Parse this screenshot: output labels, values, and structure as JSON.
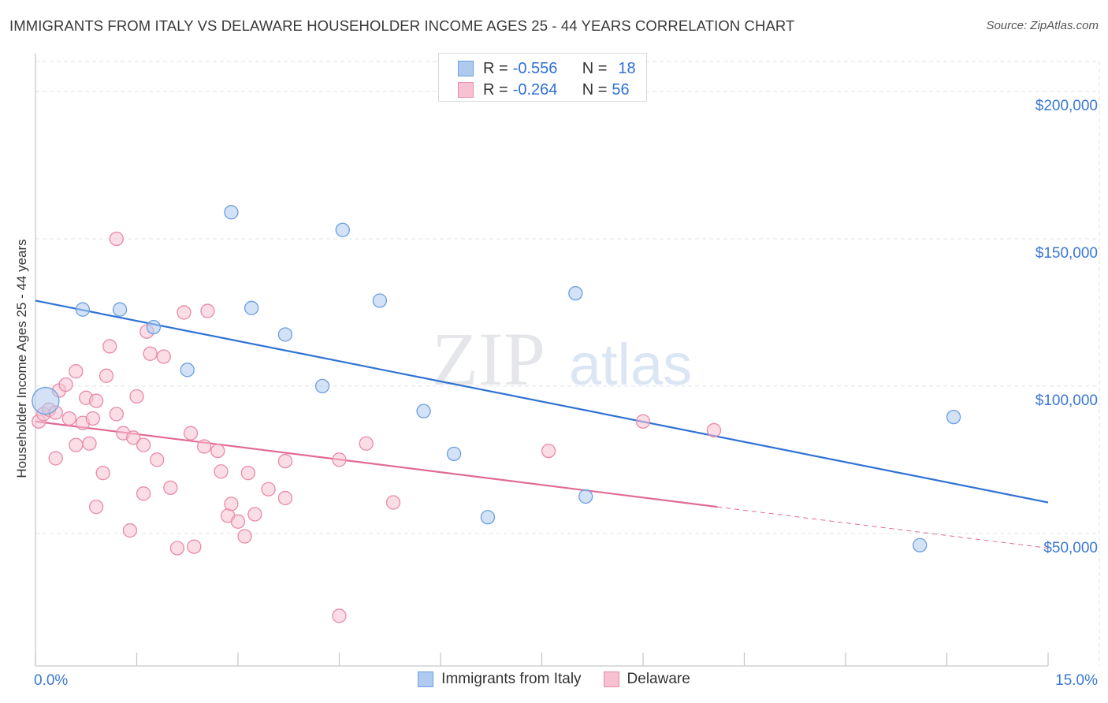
{
  "title": "IMMIGRANTS FROM ITALY VS DELAWARE HOUSEHOLDER INCOME AGES 25 - 44 YEARS CORRELATION CHART",
  "source": "Source: ZipAtlas.com",
  "watermark": {
    "zip": "ZIP",
    "atlas": "atlas"
  },
  "legend": {
    "rows": [
      {
        "r_label": "R =",
        "r_value": "-0.556",
        "n_label": "N =",
        "n_value": "18"
      },
      {
        "r_label": "R =",
        "r_value": "-0.264",
        "n_label": "N =",
        "n_value": "56"
      }
    ]
  },
  "bottom_legend": {
    "series1": "Immigrants from Italy",
    "series2": "Delaware"
  },
  "colors": {
    "blue_fill": "#aecbef",
    "blue_stroke": "#6a9fe0",
    "blue_line": "#2f72d4",
    "pink_fill": "#f7c1d1",
    "pink_stroke": "#e98aa9",
    "pink_line": "#e06a96",
    "tick_label": "#3a78d4",
    "grid": "#dde3ea"
  },
  "chart_data": {
    "type": "scatter",
    "title": "IMMIGRANTS FROM ITALY VS DELAWARE HOUSEHOLDER INCOME AGES 25 - 44 YEARS CORRELATION CHART",
    "xlabel": "",
    "ylabel": "Householder Income Ages 25 - 44 years",
    "xlim": [
      0,
      15
    ],
    "ylim": [
      5000,
      215000
    ],
    "x_tick_labels": [
      "0.0%",
      "15.0%"
    ],
    "y_ticks": [
      50000,
      100000,
      150000,
      200000
    ],
    "y_tick_labels": [
      "$50,000",
      "$100,000",
      "$150,000",
      "$200,000"
    ],
    "grid": true,
    "legend_position": "top-center",
    "series": [
      {
        "name": "Immigrants from Italy",
        "r": -0.556,
        "n": 18,
        "points": [
          [
            0.15,
            95000
          ],
          [
            0.7,
            126000
          ],
          [
            1.25,
            126000
          ],
          [
            1.75,
            120000
          ],
          [
            2.25,
            105500
          ],
          [
            2.9,
            159000
          ],
          [
            3.2,
            126500
          ],
          [
            3.7,
            117500
          ],
          [
            4.25,
            100000
          ],
          [
            4.55,
            153000
          ],
          [
            5.1,
            129000
          ],
          [
            5.75,
            91500
          ],
          [
            6.2,
            77000
          ],
          [
            6.7,
            55500
          ],
          [
            8.0,
            131500
          ],
          [
            8.15,
            62500
          ],
          [
            13.1,
            46000
          ],
          [
            13.6,
            89500
          ]
        ],
        "trend": [
          [
            0,
            129000
          ],
          [
            15,
            60500
          ]
        ]
      },
      {
        "name": "Delaware",
        "r": -0.264,
        "n": 56,
        "points": [
          [
            0.05,
            88000
          ],
          [
            0.12,
            90500
          ],
          [
            0.2,
            92000
          ],
          [
            0.3,
            91000
          ],
          [
            0.3,
            75500
          ],
          [
            0.35,
            98500
          ],
          [
            0.45,
            100500
          ],
          [
            0.5,
            89000
          ],
          [
            0.6,
            105000
          ],
          [
            0.6,
            80000
          ],
          [
            0.7,
            87500
          ],
          [
            0.75,
            96000
          ],
          [
            0.8,
            80500
          ],
          [
            0.85,
            89000
          ],
          [
            0.9,
            59000
          ],
          [
            0.9,
            95000
          ],
          [
            1.0,
            70500
          ],
          [
            1.05,
            103500
          ],
          [
            1.1,
            113500
          ],
          [
            1.2,
            150000
          ],
          [
            1.2,
            90500
          ],
          [
            1.3,
            84000
          ],
          [
            1.4,
            51000
          ],
          [
            1.45,
            82500
          ],
          [
            1.5,
            96500
          ],
          [
            1.6,
            80000
          ],
          [
            1.6,
            63500
          ],
          [
            1.65,
            118500
          ],
          [
            1.7,
            111000
          ],
          [
            1.8,
            75000
          ],
          [
            1.9,
            110000
          ],
          [
            2.0,
            65500
          ],
          [
            2.1,
            45000
          ],
          [
            2.2,
            125000
          ],
          [
            2.3,
            84000
          ],
          [
            2.35,
            45500
          ],
          [
            2.5,
            79500
          ],
          [
            2.55,
            125500
          ],
          [
            2.7,
            78000
          ],
          [
            2.75,
            71000
          ],
          [
            2.85,
            56000
          ],
          [
            2.9,
            60000
          ],
          [
            3.0,
            54000
          ],
          [
            3.1,
            49000
          ],
          [
            3.15,
            70500
          ],
          [
            3.25,
            56500
          ],
          [
            3.45,
            65000
          ],
          [
            3.7,
            74500
          ],
          [
            3.7,
            62000
          ],
          [
            4.5,
            75000
          ],
          [
            4.5,
            22000
          ],
          [
            4.9,
            80500
          ],
          [
            5.3,
            60500
          ],
          [
            7.6,
            78000
          ],
          [
            9.0,
            88000
          ],
          [
            10.05,
            85000
          ]
        ],
        "trend": [
          [
            0,
            88000
          ],
          [
            10.1,
            59000
          ]
        ],
        "trend_extension": [
          [
            10.1,
            59000
          ],
          [
            15,
            45000
          ]
        ]
      }
    ]
  }
}
